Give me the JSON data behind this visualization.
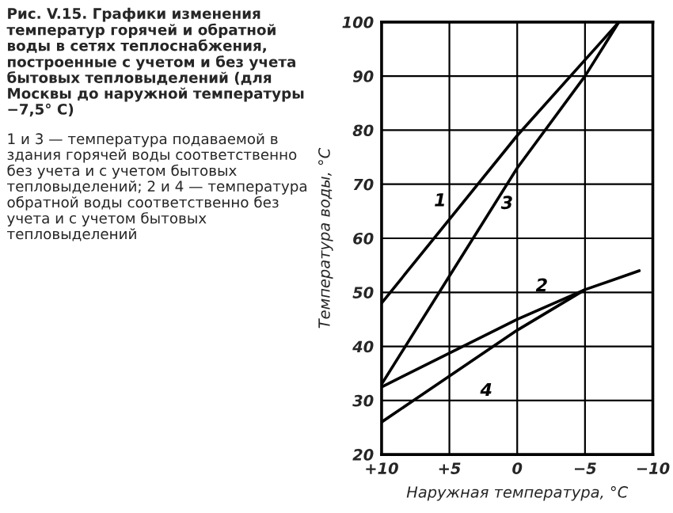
{
  "chart_data": {
    "type": "line",
    "title": "Рис. V.15. Графики изменения температур горячей и обратной воды в сетях теплоснабжения, построенные с учетом и без учета бытовых тепловыделений (для Москвы до наружной температуры −7,5° C)",
    "annotations": [
      "1 и 3 — температура подаваемой в здания горячей воды соответственно без учета и с учетом бытовых тепловыделений; 2 и 4 — температура обратной воды соответственно без учета и с учетом бытовых тепловыделений"
    ],
    "xlabel": "Наружная температура, °C",
    "ylabel": "Температура воды, °C",
    "series": [
      {
        "name": "1",
        "color": "#000000",
        "x": [
          10,
          0,
          -7.5
        ],
        "values": [
          48,
          79,
          100
        ]
      },
      {
        "name": "3",
        "color": "#000000",
        "x": [
          10,
          5,
          0,
          -5,
          -7.5
        ],
        "values": [
          33,
          53,
          73,
          90,
          100
        ]
      },
      {
        "name": "2",
        "color": "#000000",
        "x": [
          10,
          0,
          -5,
          -9
        ],
        "values": [
          32.5,
          45,
          50.5,
          54
        ]
      },
      {
        "name": "4",
        "color": "#000000",
        "x": [
          10,
          0,
          -5
        ],
        "values": [
          26,
          43,
          50.5
        ]
      }
    ],
    "xlim": [
      10,
      -10
    ],
    "xticks": [
      {
        "value": 10,
        "label": "+10"
      },
      {
        "value": 5,
        "label": "+5"
      },
      0,
      {
        "value": -5,
        "label": "−5"
      },
      {
        "value": -10,
        "label": "−10"
      }
    ],
    "ylim": [
      20,
      100
    ],
    "yticks": [
      20,
      30,
      40,
      50,
      60,
      70,
      80,
      90,
      100
    ],
    "grid": true,
    "marker": "none",
    "line_style": "solid",
    "legend": false
  }
}
